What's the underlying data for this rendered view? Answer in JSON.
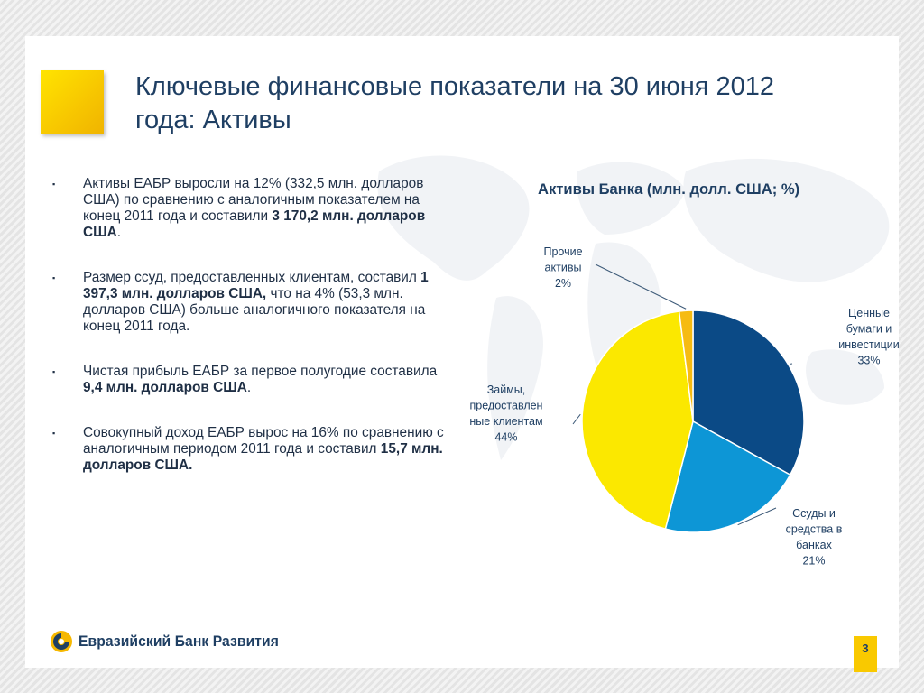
{
  "header": {
    "title_line1": "Ключевые финансовые показатели на 30 июня 2012",
    "title_line2": "года: Активы"
  },
  "bullets": [
    {
      "marker": "▪",
      "parts": [
        {
          "t": " Активы ЕАБР выросли на 12% (332,5 млн. долларов США) по сравнению с аналогичным показателем на конец  2011 года и составили "
        },
        {
          "b": "3 170,2 млн. долларов США"
        },
        {
          "t": "."
        }
      ]
    },
    {
      "marker": "▪",
      "parts": [
        {
          "t": "Размер ссуд, предоставленных клиентам, составил "
        },
        {
          "b": "1 397,3 млн. долларов США,"
        },
        {
          "t": " что на 4% (53,3 млн. долларов США) больше аналогичного показателя на конец 2011 года."
        }
      ]
    },
    {
      "marker": "▪",
      "parts": [
        {
          "t": " Чистая прибыль ЕАБР за первое полугодие составила "
        },
        {
          "b": "9,4 млн. долларов США"
        },
        {
          "t": "."
        }
      ]
    },
    {
      "marker": "▪",
      "parts": [
        {
          "t": "Совокупный доход ЕАБР вырос на 16% по сравнению с аналогичным периодом 2011 года и составил "
        },
        {
          "b": "15,7 млн. долларов США."
        }
      ]
    }
  ],
  "chart_data": {
    "type": "pie",
    "title": "Активы Банка (млн. долл. США; %)",
    "categories": [
      "Ценные бумаги и инвестиции",
      "Ссуды и средства в банках",
      "Займы, предоставленные клиентам",
      "Прочие активы"
    ],
    "values": [
      33,
      21,
      44,
      2
    ],
    "colors": [
      "#0b4a86",
      "#0d96d6",
      "#fbe800",
      "#f6bb12"
    ],
    "labels": [
      {
        "lines": [
          "Ценные",
          "бумаги и",
          "инвестиции",
          "33%"
        ]
      },
      {
        "lines": [
          "Ссуды и",
          "средства в",
          "банках",
          "21%"
        ]
      },
      {
        "lines": [
          "Займы,",
          "предоставлен",
          "ные клиентам",
          "44%"
        ]
      },
      {
        "lines": [
          "Прочие",
          "активы",
          "2%"
        ]
      }
    ]
  },
  "footer": {
    "logo_text": "Евразийский Банк Развития",
    "page_number": "3"
  },
  "theme": {
    "accent_yellow": "#f9c900",
    "text_dark_blue": "#1f3f63"
  }
}
